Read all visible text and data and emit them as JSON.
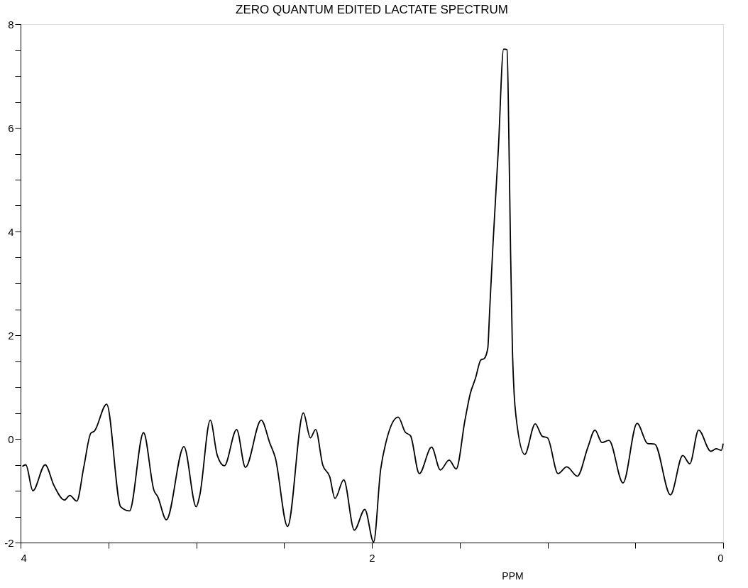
{
  "chart_data": {
    "type": "line",
    "title": "ZERO QUANTUM EDITED LACTATE SPECTRUM",
    "xlabel": "PPM",
    "xlim": [
      4,
      0
    ],
    "ylim": [
      -2,
      8
    ],
    "xticks": [
      4,
      {
        "value": 3.5,
        "label": null
      },
      {
        "value": 3,
        "label": null
      },
      {
        "value": 2.5,
        "label": null
      },
      2,
      {
        "value": 1.5,
        "label": null
      },
      {
        "value": 1,
        "label": null
      },
      {
        "value": 0.5,
        "label": null
      },
      0
    ],
    "yticks": [
      -2,
      {
        "value": -1.5,
        "label": null
      },
      {
        "value": -1,
        "label": null
      },
      {
        "value": -0.5,
        "label": null
      },
      0,
      {
        "value": 0.5,
        "label": null
      },
      {
        "value": 1,
        "label": null
      },
      {
        "value": 1.5,
        "label": null
      },
      2,
      {
        "value": 2.5,
        "label": null
      },
      {
        "value": 3,
        "label": null
      },
      {
        "value": 3.5,
        "label": null
      },
      4,
      {
        "value": 4.5,
        "label": null
      },
      {
        "value": 5,
        "label": null
      },
      {
        "value": 5.5,
        "label": null
      },
      6,
      {
        "value": 6.5,
        "label": null
      },
      {
        "value": 7,
        "label": null
      },
      {
        "value": 7.5,
        "label": null
      },
      8
    ],
    "grid": false,
    "marker": "none",
    "line_style": "solid",
    "series": [
      {
        "color": "#000000",
        "x": [
          3.99,
          3.97,
          3.93,
          3.86,
          3.81,
          3.75,
          3.72,
          3.68,
          3.64,
          3.6,
          3.58,
          3.51,
          3.43,
          3.38,
          3.3,
          3.24,
          3.22,
          3.17,
          3.07,
          3.0,
          2.98,
          2.92,
          2.88,
          2.84,
          2.77,
          2.72,
          2.63,
          2.58,
          2.55,
          2.48,
          2.39,
          2.35,
          2.32,
          2.28,
          2.24,
          2.21,
          2.16,
          2.1,
          2.04,
          1.99,
          1.95,
          1.92,
          1.85,
          1.81,
          1.78,
          1.73,
          1.66,
          1.61,
          1.56,
          1.52,
          1.47,
          1.44,
          1.41,
          1.38,
          1.36,
          1.34,
          1.33,
          1.31,
          1.28,
          1.25,
          1.23,
          1.22,
          1.21,
          1.2,
          1.19,
          1.18,
          1.13,
          1.07,
          1.03,
          1.0,
          0.94,
          0.89,
          0.83,
          0.77,
          0.73,
          0.69,
          0.65,
          0.57,
          0.49,
          0.43,
          0.39,
          0.3,
          0.23,
          0.19,
          0.14,
          0.07,
          0.04,
          0.01,
          0.0
        ],
        "values": [
          -0.53,
          -0.5,
          -1.0,
          -0.5,
          -0.9,
          -1.18,
          -1.09,
          -1.2,
          -0.54,
          0.11,
          0.15,
          0.67,
          -1.31,
          -1.39,
          0.12,
          -1.0,
          -1.11,
          -1.56,
          -0.15,
          -1.31,
          -1.09,
          0.36,
          -0.32,
          -0.52,
          0.18,
          -0.55,
          0.36,
          -0.09,
          -0.36,
          -1.69,
          0.5,
          0.02,
          0.18,
          -0.5,
          -0.73,
          -1.15,
          -0.79,
          -1.76,
          -1.36,
          -1.99,
          -0.59,
          -0.07,
          0.42,
          0.13,
          0.06,
          -0.67,
          -0.16,
          -0.6,
          -0.41,
          -0.58,
          0.36,
          0.87,
          1.17,
          1.52,
          1.55,
          1.75,
          2.43,
          3.78,
          5.58,
          7.52,
          7.51,
          5.81,
          3.55,
          1.75,
          0.87,
          0.45,
          -0.3,
          0.29,
          0.05,
          0.02,
          -0.67,
          -0.54,
          -0.72,
          -0.16,
          0.17,
          -0.07,
          -0.03,
          -0.85,
          0.3,
          -0.09,
          -0.1,
          -1.08,
          -0.32,
          -0.48,
          0.17,
          -0.24,
          -0.19,
          -0.22,
          -0.09
        ]
      }
    ]
  }
}
